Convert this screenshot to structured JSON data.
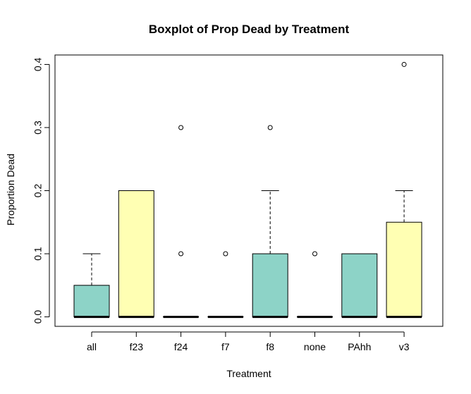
{
  "chart_data": {
    "type": "boxplot",
    "title": "Boxplot of Prop Dead by Treatment",
    "xlabel": "Treatment",
    "ylabel": "Proportion Dead",
    "ylim": [
      -0.015,
      0.415
    ],
    "yticks": [
      "0.0",
      "0.1",
      "0.2",
      "0.3",
      "0.4"
    ],
    "ytick_values": [
      0,
      0.1,
      0.2,
      0.3,
      0.4
    ],
    "colors": [
      "#8DD3C7",
      "#FFFFB3"
    ],
    "categories": [
      "all",
      "f23",
      "f24",
      "f7",
      "f8",
      "none",
      "PAhh",
      "v3"
    ],
    "boxes": [
      {
        "q1": 0,
        "median": 0,
        "q3": 0.05,
        "whisker_low": 0,
        "whisker_high": 0.1,
        "outliers": []
      },
      {
        "q1": 0,
        "median": 0,
        "q3": 0.2,
        "whisker_low": 0,
        "whisker_high": 0.2,
        "outliers": []
      },
      {
        "q1": 0,
        "median": 0,
        "q3": 0,
        "whisker_low": 0,
        "whisker_high": 0,
        "outliers": [
          0.1,
          0.3
        ]
      },
      {
        "q1": 0,
        "median": 0,
        "q3": 0,
        "whisker_low": 0,
        "whisker_high": 0,
        "outliers": [
          0.1
        ]
      },
      {
        "q1": 0,
        "median": 0,
        "q3": 0.1,
        "whisker_low": 0,
        "whisker_high": 0.2,
        "outliers": [
          0.3
        ]
      },
      {
        "q1": 0,
        "median": 0,
        "q3": 0,
        "whisker_low": 0,
        "whisker_high": 0,
        "outliers": [
          0.1
        ]
      },
      {
        "q1": 0,
        "median": 0,
        "q3": 0.1,
        "whisker_low": 0,
        "whisker_high": 0.1,
        "outliers": []
      },
      {
        "q1": 0,
        "median": 0,
        "q3": 0.15,
        "whisker_low": 0,
        "whisker_high": 0.2,
        "outliers": [
          0.4
        ]
      }
    ]
  }
}
